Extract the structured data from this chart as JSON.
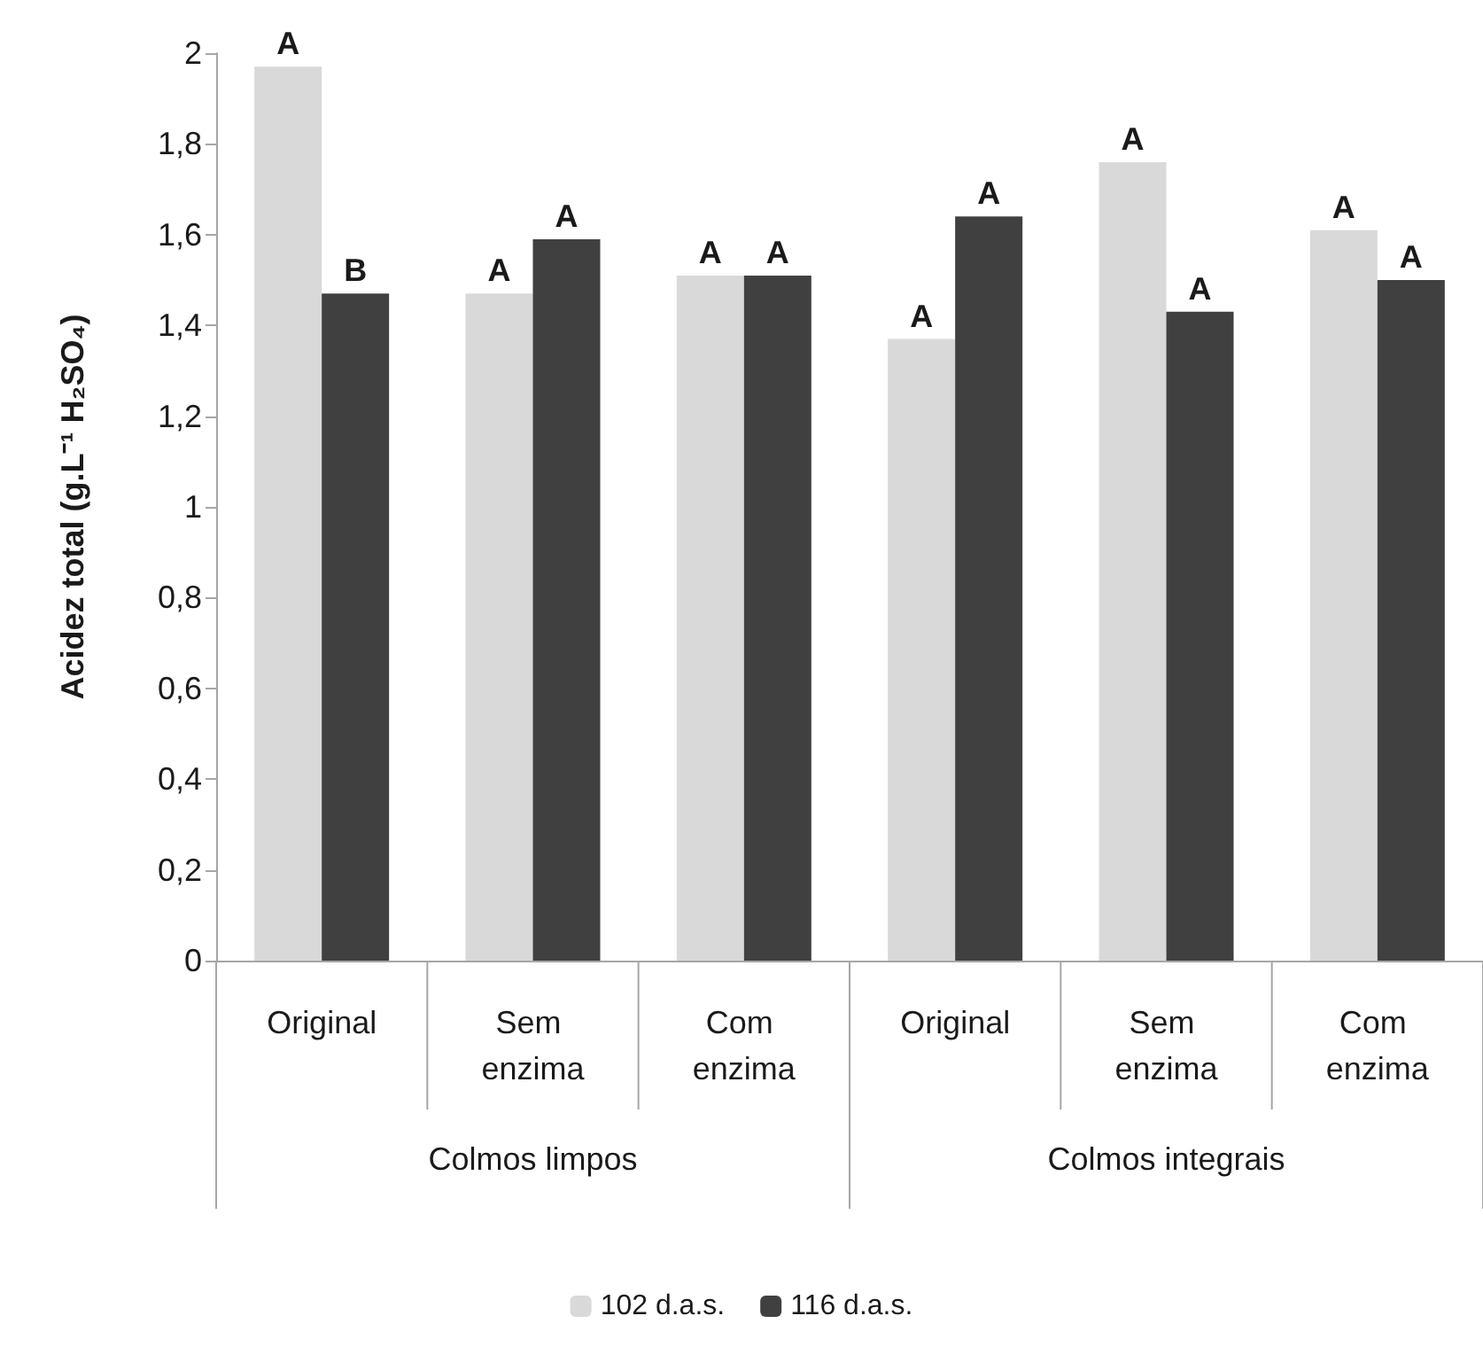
{
  "chart_data": {
    "type": "bar",
    "ylabel": "Acidez total (g.L⁻¹ H₂SO₄)",
    "categories": [
      "Original",
      "Sem enzima",
      "Com enzima",
      "Original",
      "Sem enzima",
      "Com enzima"
    ],
    "annotations": [
      "Colmos limpos",
      "Colmos integrais"
    ],
    "series": [
      {
        "name": "102 d.a.s.",
        "color": "#d9d9d9",
        "values": [
          1.97,
          1.47,
          1.51,
          1.37,
          1.76,
          1.61
        ],
        "value_labels": [
          "A",
          "A",
          "A",
          "A",
          "A",
          "A"
        ]
      },
      {
        "name": "116 d.a.s.",
        "color": "#404040",
        "values": [
          1.47,
          1.59,
          1.51,
          1.64,
          1.43,
          1.5
        ],
        "value_labels": [
          "B",
          "A",
          "A",
          "A",
          "A",
          "A"
        ]
      }
    ],
    "ylim": [
      0,
      2
    ],
    "yticks": [
      {
        "value": 0,
        "label": "0"
      },
      {
        "value": 0.2,
        "label": "0,2"
      },
      {
        "value": 0.4,
        "label": "0,4"
      },
      {
        "value": 0.6,
        "label": "0,6"
      },
      {
        "value": 0.8,
        "label": "0,8"
      },
      {
        "value": 1,
        "label": "1"
      },
      {
        "value": 1.2,
        "label": "1,2"
      },
      {
        "value": 1.4,
        "label": "1,4"
      },
      {
        "value": 1.6,
        "label": "1,6"
      },
      {
        "value": 1.8,
        "label": "1,8"
      },
      {
        "value": 2,
        "label": "2"
      }
    ],
    "grid": false,
    "legend": "bottom"
  }
}
